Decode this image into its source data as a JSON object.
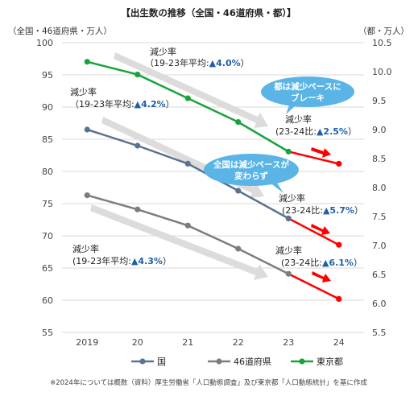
{
  "chart_data": {
    "type": "line",
    "title": "【出生数の推移（全国・46道府県・都）】",
    "left_axis_unit": "（全国・46道府県・万人）",
    "right_axis_unit": "（都・万人）",
    "categories": [
      "2019",
      "20",
      "21",
      "22",
      "23",
      "24"
    ],
    "left_ylim": [
      55,
      100
    ],
    "left_ticks": [
      "55",
      "60",
      "65",
      "70",
      "75",
      "80",
      "85",
      "90",
      "95",
      "100"
    ],
    "right_ylim": [
      5.5,
      10.5
    ],
    "right_ticks": [
      "5.5",
      "6.0",
      "6.5",
      "7.0",
      "7.5",
      "8.0",
      "8.5",
      "9.0",
      "9.5",
      "10.0",
      "10.5"
    ],
    "series": [
      {
        "name": "国",
        "axis": "left",
        "color": "#5a7390",
        "values": [
          86.5,
          84.0,
          81.2,
          77.0,
          72.7,
          68.6
        ]
      },
      {
        "name": "46道府県",
        "axis": "left",
        "color": "#7d7d7d",
        "values": [
          76.3,
          74.1,
          71.6,
          68.0,
          64.1,
          60.2
        ]
      },
      {
        "name": "東京都",
        "axis": "right",
        "color": "#1aa33c",
        "values": [
          10.17,
          9.95,
          9.54,
          9.13,
          8.62,
          8.41
        ]
      }
    ],
    "highlight_color": "#ff0000",
    "grid": true,
    "legend_position": "bottom"
  },
  "annotations": {
    "tokyo_trend": {
      "line1": "減少率",
      "line2_prefix": "（19-23年平均:",
      "line2_value": "▲4.0%",
      "line2_suffix": "）"
    },
    "national_trend": {
      "line1": "減少率",
      "line2_prefix": "（19-23年平均:",
      "line2_value": "▲4.2%",
      "line2_suffix": "）"
    },
    "pref_trend": {
      "line1": "減少率",
      "line2_prefix": "(19-23年平均:",
      "line2_value": "▲4.3%",
      "line2_suffix": "）"
    },
    "tokyo_yoy": {
      "line1": "減少率",
      "line2_prefix": "(23-24比:",
      "line2_value": "▲2.5%",
      "line2_suffix": "）"
    },
    "national_yoy": {
      "line1": "減少率",
      "line2_prefix": "(23-24比:",
      "line2_value": "▲5.7%",
      "line2_suffix": "）"
    },
    "pref_yoy": {
      "line1": "減少率",
      "line2_prefix": "(23-24比:",
      "line2_value": "▲6.1%",
      "line2_suffix": "）"
    }
  },
  "bubbles": {
    "tokyo": {
      "line1": "都は減少ペースに",
      "line2": "ブレーキ",
      "color": "#5ab4e6"
    },
    "national": {
      "line1": "全国は減少ペースが",
      "line2": "変わらず",
      "color": "#5ab4e6"
    }
  },
  "footnote": "※2024年については概数（資料）厚生労働省「人口動態調査」及び東京都「人口動態統計」を基に作成"
}
